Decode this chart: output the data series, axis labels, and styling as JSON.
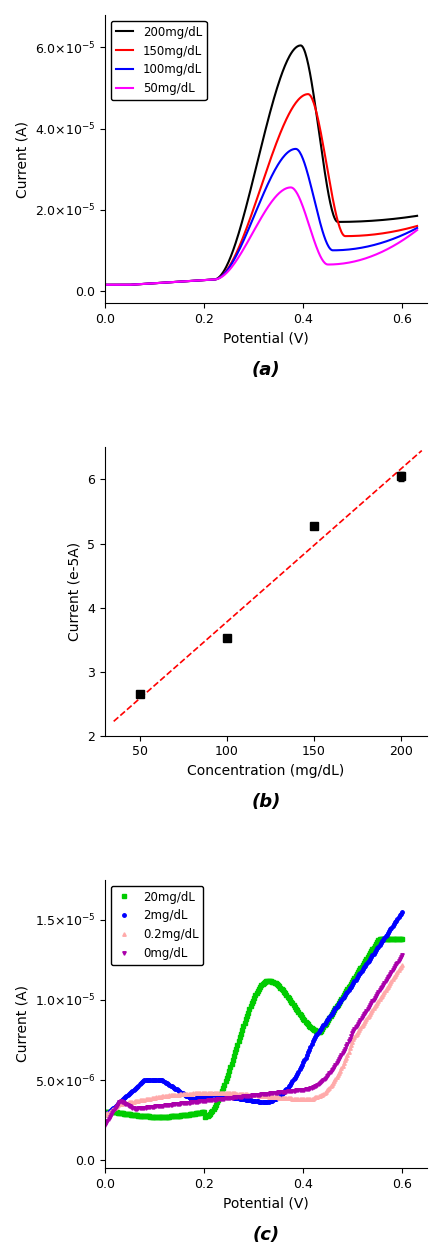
{
  "fig_width": 4.42,
  "fig_height": 12.58,
  "panel_a": {
    "xlabel": "Potential (V)",
    "ylabel": "Current (A)",
    "label": "(a)",
    "xlim": [
      0.0,
      0.65
    ],
    "ylim": [
      -3e-06,
      6.8e-05
    ],
    "yticks": [
      0.0,
      2e-05,
      4e-05,
      6e-05
    ],
    "xticks": [
      0.0,
      0.2,
      0.4,
      0.6
    ],
    "curves": [
      {
        "label": "200mg/dL",
        "color": "#000000"
      },
      {
        "label": "150mg/dL",
        "color": "#ff0000"
      },
      {
        "label": "100mg/dL",
        "color": "#0000ff"
      },
      {
        "label": "50mg/dL",
        "color": "#ff00ff"
      }
    ]
  },
  "panel_b": {
    "xlabel": "Concentration (mg/dL)",
    "ylabel": "Current (e-5A)",
    "label": "(b)",
    "xlim": [
      30,
      215
    ],
    "ylim": [
      2.0,
      6.5
    ],
    "xticks": [
      50,
      100,
      150,
      200
    ],
    "yticks": [
      2,
      3,
      4,
      5,
      6
    ],
    "data_x": [
      50,
      100,
      150,
      200
    ],
    "data_y": [
      2.65,
      3.52,
      5.27,
      6.05
    ],
    "data_yerr": [
      0.04,
      0.05,
      0.04,
      0.07
    ],
    "fit_color": "#ff0000",
    "marker_color": "#000000"
  },
  "panel_c": {
    "xlabel": "Potential (V)",
    "ylabel": "Current (A)",
    "label": "(c)",
    "xlim": [
      0.0,
      0.65
    ],
    "ylim": [
      -5e-07,
      1.75e-05
    ],
    "yticks": [
      0.0,
      5e-06,
      1e-05,
      1.5e-05
    ],
    "xticks": [
      0.0,
      0.2,
      0.4,
      0.6
    ],
    "curves": [
      {
        "label": "20mg/dL",
        "color": "#00cc00",
        "marker": "s"
      },
      {
        "label": "2mg/dL",
        "color": "#0000ff",
        "marker": "o"
      },
      {
        "label": "0.2mg/dL",
        "color": "#ffaaaa",
        "marker": "^"
      },
      {
        "label": "0mg/dL",
        "color": "#aa00aa",
        "marker": "v"
      }
    ]
  }
}
